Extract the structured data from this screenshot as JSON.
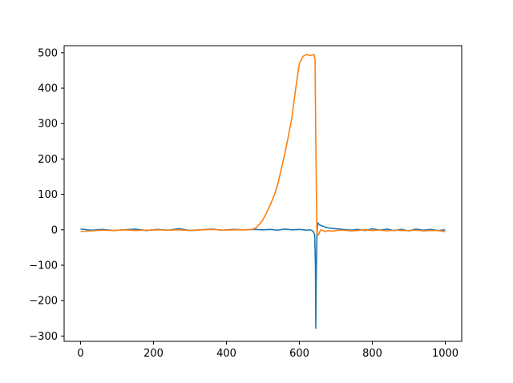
{
  "chart_data": {
    "type": "line",
    "title": "",
    "xlabel": "",
    "ylabel": "",
    "xlim": [
      -45,
      1045
    ],
    "ylim": [
      -315,
      520
    ],
    "x_ticks": [
      0,
      200,
      400,
      600,
      800,
      1000
    ],
    "y_ticks": [
      -300,
      -200,
      -100,
      0,
      100,
      200,
      300,
      400,
      500
    ],
    "x_tick_labels": [
      "0",
      "200",
      "400",
      "600",
      "800",
      "1000"
    ],
    "y_tick_labels": [
      "−300",
      "−200",
      "−100",
      "0",
      "100",
      "200",
      "300",
      "400",
      "500"
    ],
    "grid": false,
    "legend": "none",
    "series": [
      {
        "color": "#1f77b4",
        "x": [
          0,
          30,
          60,
          90,
          120,
          150,
          180,
          210,
          240,
          270,
          300,
          330,
          360,
          390,
          420,
          450,
          480,
          500,
          520,
          540,
          560,
          580,
          600,
          620,
          630,
          638,
          642,
          644,
          645,
          646,
          648,
          650,
          655,
          660,
          670,
          680,
          700,
          720,
          740,
          760,
          780,
          800,
          820,
          840,
          860,
          880,
          900,
          920,
          940,
          960,
          980,
          1000
        ],
        "y": [
          2,
          -1,
          1,
          -2,
          0,
          2,
          -2,
          1,
          -1,
          3,
          -2,
          0,
          2,
          -1,
          1,
          0,
          1,
          0,
          1,
          -1,
          2,
          0,
          1,
          -1,
          0,
          -4,
          -15,
          -100,
          -278,
          -150,
          -20,
          20,
          14,
          12,
          8,
          5,
          3,
          1,
          -1,
          1,
          -2,
          3,
          -1,
          2,
          -2,
          1,
          -3,
          2,
          -1,
          1,
          -2,
          0
        ]
      },
      {
        "color": "#ff7f0e",
        "x": [
          0,
          30,
          60,
          90,
          120,
          150,
          180,
          210,
          240,
          270,
          300,
          330,
          360,
          390,
          420,
          450,
          470,
          480,
          490,
          500,
          510,
          520,
          530,
          540,
          550,
          560,
          570,
          580,
          590,
          600,
          610,
          620,
          630,
          640,
          643,
          645,
          648,
          652,
          656,
          660,
          670,
          680,
          690,
          700,
          720,
          740,
          760,
          780,
          800,
          820,
          840,
          860,
          880,
          900,
          920,
          940,
          960,
          980,
          1000
        ],
        "y": [
          -5,
          -3,
          -1,
          -2,
          0,
          -2,
          -1,
          0,
          -1,
          0,
          -2,
          0,
          1,
          -1,
          0,
          0,
          1,
          5,
          15,
          28,
          48,
          70,
          95,
          125,
          170,
          215,
          265,
          320,
          400,
          470,
          490,
          495,
          492,
          495,
          480,
          250,
          -10,
          -15,
          -5,
          0,
          -5,
          -2,
          -4,
          -2,
          -1,
          -3,
          -2,
          0,
          -2,
          -1,
          -3,
          -1,
          -2,
          -2,
          -1,
          -3,
          -2,
          -2,
          -5
        ]
      }
    ]
  }
}
